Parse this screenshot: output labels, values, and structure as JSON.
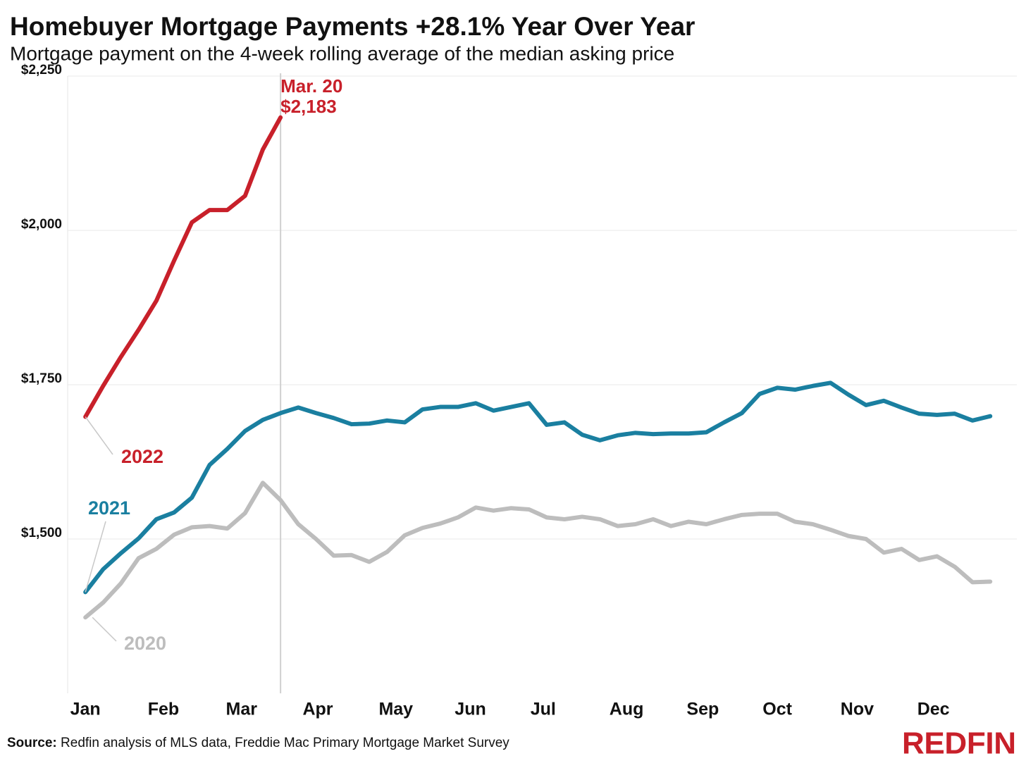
{
  "chart_data": {
    "type": "line",
    "title": "Homebuyer Mortgage Payments +28.1% Year Over Year",
    "subtitle": "Mortgage payment on the 4-week rolling average of the median asking price",
    "source_label": "Source:",
    "source": "Redfin analysis of MLS data, Freddie Mac Primary Mortgage Market Survey",
    "logo": "REDFIN",
    "x": [
      1,
      2,
      3,
      4,
      5,
      6,
      7,
      8,
      9,
      10,
      11,
      12,
      13,
      14,
      15,
      16,
      17,
      18,
      19,
      20,
      21,
      22,
      23,
      24,
      25,
      26,
      27,
      28,
      29,
      30,
      31,
      32,
      33,
      34,
      35,
      36,
      37,
      38,
      39,
      40,
      41,
      42,
      43,
      44,
      45,
      46,
      47,
      48,
      49,
      50,
      51,
      52
    ],
    "xlim": [
      0,
      53.5
    ],
    "xticks": [
      {
        "value": 1,
        "label": "Jan"
      },
      {
        "value": 5.4,
        "label": "Feb"
      },
      {
        "value": 9.8,
        "label": "Mar"
      },
      {
        "value": 14.1,
        "label": "Apr"
      },
      {
        "value": 18.5,
        "label": "May"
      },
      {
        "value": 22.7,
        "label": "Jun"
      },
      {
        "value": 26.8,
        "label": "Jul"
      },
      {
        "value": 31.5,
        "label": "Aug"
      },
      {
        "value": 35.8,
        "label": "Sep"
      },
      {
        "value": 40,
        "label": "Oct"
      },
      {
        "value": 44.5,
        "label": "Nov"
      },
      {
        "value": 48.8,
        "label": "Dec"
      }
    ],
    "ylim": [
      1250,
      2250
    ],
    "yticks": [
      {
        "value": 1500,
        "label": "$1,500"
      },
      {
        "value": 1750,
        "label": "$1,750"
      },
      {
        "value": 2000,
        "label": "$2,000"
      },
      {
        "value": 2250,
        "label": "$2,250"
      }
    ],
    "grid": true,
    "annotation": {
      "text": "Mar. 20",
      "x": 12
    },
    "series": [
      {
        "name": "2022",
        "color": "#c8202a",
        "values": [
          1698,
          1748,
          1795,
          1839,
          1886,
          1951,
          2013,
          2033,
          2033,
          2056,
          2131,
          2183,
          null,
          null,
          null,
          null,
          null,
          null,
          null,
          null,
          null,
          null,
          null,
          null,
          null,
          null,
          null,
          null,
          null,
          null,
          null,
          null,
          null,
          null,
          null,
          null,
          null,
          null,
          null,
          null,
          null,
          null,
          null,
          null,
          null,
          null,
          null,
          null,
          null,
          null,
          null,
          null
        ],
        "value_labels": [
          null,
          null,
          null,
          null,
          null,
          null,
          null,
          null,
          null,
          null,
          null,
          "$2,183",
          null,
          null,
          null,
          null,
          null,
          null,
          null,
          null,
          null,
          null,
          null,
          null,
          null,
          null,
          null,
          null,
          null,
          null,
          null,
          null,
          null,
          null,
          null,
          null,
          null,
          null,
          null,
          null,
          null,
          null,
          null,
          null,
          null,
          null,
          null,
          null,
          null,
          null,
          null,
          null
        ]
      },
      {
        "name": "2021",
        "color": "#1a7fa0",
        "values": [
          1414,
          1451,
          1477,
          1501,
          1532,
          1543,
          1567,
          1620,
          1646,
          1675,
          1693,
          1704,
          1713,
          1704,
          1696,
          1686,
          1687,
          1692,
          1689,
          1710,
          1714,
          1714,
          1720,
          1708,
          1714,
          1720,
          1685,
          1689,
          1669,
          1660,
          1668,
          1672,
          1670,
          1671,
          1671,
          1673,
          1689,
          1704,
          1735,
          1745,
          1742,
          1748,
          1753,
          1734,
          1717,
          1724,
          1713,
          1703,
          1701,
          1703,
          1692,
          1699
        ]
      },
      {
        "name": "2020",
        "color": "#bdbdbd",
        "values": [
          1373,
          1397,
          1428,
          1469,
          1484,
          1507,
          1519,
          1521,
          1517,
          1542,
          1591,
          1563,
          1524,
          1500,
          1473,
          1474,
          1463,
          1479,
          1506,
          1518,
          1525,
          1535,
          1551,
          1546,
          1550,
          1548,
          1535,
          1532,
          1536,
          1532,
          1521,
          1524,
          1532,
          1521,
          1528,
          1524,
          1532,
          1539,
          1541,
          1541,
          1528,
          1524,
          1515,
          1505,
          1500,
          1478,
          1484,
          1466,
          1472,
          1455,
          1430,
          1431
        ]
      }
    ]
  }
}
